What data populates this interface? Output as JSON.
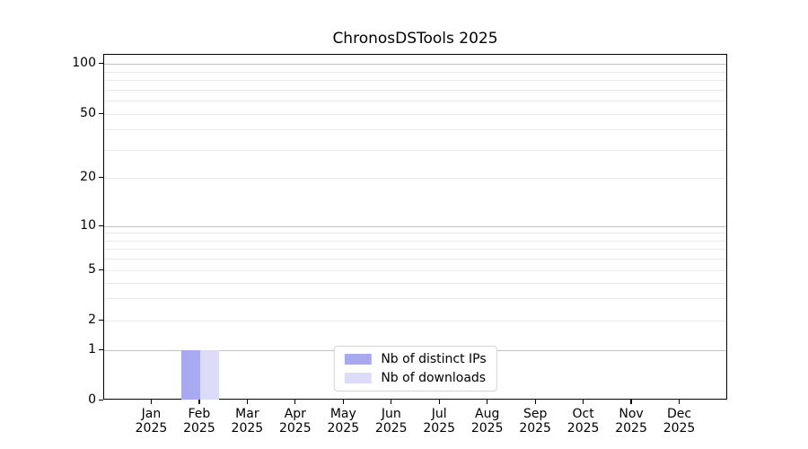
{
  "figure": {
    "background": "#ffffff"
  },
  "chart_data": {
    "type": "bar",
    "title": "ChronosDSTools 2025",
    "categories": [
      "Jan",
      "Feb",
      "Mar",
      "Apr",
      "May",
      "Jun",
      "Jul",
      "Aug",
      "Sep",
      "Oct",
      "Nov",
      "Dec"
    ],
    "category_year": "2025",
    "series": [
      {
        "name": "Nb of distinct IPs",
        "color": "#a9a9f2",
        "values": [
          0,
          1,
          0,
          0,
          0,
          0,
          0,
          0,
          0,
          0,
          0,
          0
        ]
      },
      {
        "name": "Nb of downloads",
        "color": "#dcdcf8",
        "values": [
          0,
          1,
          0,
          0,
          0,
          0,
          0,
          0,
          0,
          0,
          0,
          0
        ]
      }
    ],
    "y_axis": {
      "scale": "symlog",
      "tick_labels": [
        0,
        1,
        2,
        5,
        10,
        20,
        50,
        100
      ],
      "decade_ticks": [
        1,
        10,
        100
      ],
      "minor_gridlines": [
        3,
        4,
        6,
        7,
        8,
        9,
        30,
        40,
        60,
        70,
        80,
        90
      ]
    },
    "legend": {
      "location": "lower center"
    },
    "grid": true,
    "colors": {
      "decade_grid": "#c3c3c3",
      "minor_grid": "#eaeaea",
      "axis": "#000000",
      "text": "#000000"
    }
  }
}
